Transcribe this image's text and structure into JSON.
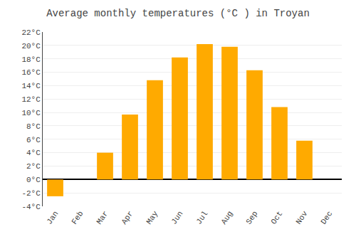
{
  "chart_data": {
    "type": "bar",
    "title": "Average monthly temperatures (°C ) in Troyan",
    "categories": [
      "Jan",
      "Feb",
      "Mar",
      "Apr",
      "May",
      "Jun",
      "Jul",
      "Aug",
      "Sep",
      "Oct",
      "Nov",
      "Dec"
    ],
    "values": [
      -2.5,
      0,
      4.0,
      9.7,
      14.8,
      18.2,
      20.2,
      19.8,
      16.3,
      10.8,
      5.8,
      0
    ],
    "color": "#FFAA00",
    "ylim": [
      -4,
      22
    ],
    "yticks": [
      {
        "value": -4,
        "label": "-4°C"
      },
      {
        "value": -2,
        "label": "-2°C"
      },
      {
        "value": 0,
        "label": "0°C"
      },
      {
        "value": 2,
        "label": "2°C"
      },
      {
        "value": 4,
        "label": "4°C"
      },
      {
        "value": 6,
        "label": "6°C"
      },
      {
        "value": 8,
        "label": "8°C"
      },
      {
        "value": 10,
        "label": "10°C"
      },
      {
        "value": 12,
        "label": "12°C"
      },
      {
        "value": 14,
        "label": "14°C"
      },
      {
        "value": 16,
        "label": "16°C"
      },
      {
        "value": 18,
        "label": "18°C"
      },
      {
        "value": 20,
        "label": "20°C"
      },
      {
        "value": 22,
        "label": "22°C"
      }
    ],
    "grid": true
  }
}
